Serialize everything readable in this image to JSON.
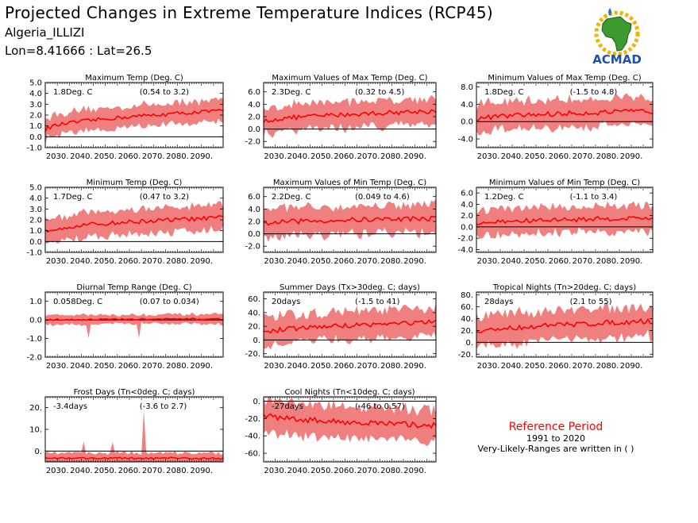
{
  "header": {
    "title": "Projected Changes in Extreme Temperature Indices (RCP45)",
    "region": "Algeria_ILLIZI",
    "coords": "Lon=8.41666 : Lat=26.5"
  },
  "logo": {
    "text": "ACMAD",
    "icon": "africa-map-logo"
  },
  "reference": {
    "title": "Reference Period",
    "years": "1991 to 2020",
    "note": "Very-Likely-Ranges are written in ( )"
  },
  "colors": {
    "band": "#f08080",
    "line": "#ff0000",
    "zero": "#000000",
    "ref_title": "#ff0000"
  },
  "chart_data": [
    {
      "type": "line",
      "title": "Maximum Temp (Deg. C)",
      "value_label": "1.8Deg. C",
      "range_label": "(0.54 to 3.2)",
      "xticks": [
        "2030.",
        "2040.",
        "2050.",
        "2060.",
        "2070.",
        "2080.",
        "2090."
      ],
      "xlim": [
        2025,
        2099
      ],
      "ylim": [
        -1,
        5
      ],
      "yticks": [
        "5.0",
        "4.0",
        "3.0",
        "2.0",
        "1.0",
        "0.0",
        "-1.0"
      ],
      "ytick_values": [
        5,
        4,
        3,
        2,
        1,
        0,
        -1
      ],
      "series": [
        {
          "start": 0.6,
          "end": 2.4,
          "band": 1.0
        }
      ]
    },
    {
      "type": "line",
      "title": "Maximum Values of Max Temp (Deg. C)",
      "value_label": "2.3Deg. C",
      "range_label": "(0.32 to 4.5)",
      "xticks": [
        "2030.",
        "2040.",
        "2050.",
        "2060.",
        "2070.",
        "2080.",
        "2090."
      ],
      "xlim": [
        2025,
        2099
      ],
      "ylim": [
        -3,
        7.5
      ],
      "yticks": [
        "6.0",
        "4.0",
        "2.0",
        "0.0",
        "-2.0"
      ],
      "ytick_values": [
        6,
        4,
        2,
        0,
        -2
      ],
      "series": [
        {
          "start": 1.1,
          "end": 2.9,
          "band": 2.1
        }
      ]
    },
    {
      "type": "line",
      "title": "Minimum Values of Max Temp (Deg. C)",
      "value_label": "1.8Deg. C",
      "range_label": "(-1.5 to 4.8)",
      "xticks": [
        "2030.",
        "2040.",
        "2050.",
        "2060.",
        "2070.",
        "2080.",
        "2090."
      ],
      "xlim": [
        2025,
        2099
      ],
      "ylim": [
        -6,
        9
      ],
      "yticks": [
        "8.0",
        "4.0",
        "0.0",
        "-4.0"
      ],
      "ytick_values": [
        8,
        4,
        0,
        -4
      ],
      "series": [
        {
          "start": 0.5,
          "end": 2.4,
          "band": 3.2
        }
      ]
    },
    {
      "type": "line",
      "title": "Minimum Temp (Deg. C)",
      "value_label": "1.7Deg. C",
      "range_label": "(0.47 to 3.2)",
      "xticks": [
        "2030.",
        "2040.",
        "2050.",
        "2060.",
        "2070.",
        "2080.",
        "2090."
      ],
      "xlim": [
        2025,
        2099
      ],
      "ylim": [
        -1,
        5
      ],
      "yticks": [
        "5.0",
        "4.0",
        "3.0",
        "2.0",
        "1.0",
        "0.0",
        "-1.0"
      ],
      "ytick_values": [
        5,
        4,
        3,
        2,
        1,
        0,
        -1
      ],
      "series": [
        {
          "start": 0.9,
          "end": 2.2,
          "band": 1.1
        }
      ]
    },
    {
      "type": "line",
      "title": "Maximum Values of Min Temp (Deg. C)",
      "value_label": "2.2Deg. C",
      "range_label": "(0.049 to 4.6)",
      "xticks": [
        "2030.",
        "2040.",
        "2050.",
        "2060.",
        "2070.",
        "2080.",
        "2090."
      ],
      "xlim": [
        2025,
        2099
      ],
      "ylim": [
        -3,
        7.5
      ],
      "yticks": [
        "6.0",
        "4.0",
        "2.0",
        "0.0",
        "-2.0"
      ],
      "ytick_values": [
        6,
        4,
        2,
        0,
        -2
      ],
      "series": [
        {
          "start": 1.6,
          "end": 2.5,
          "band": 2.3
        }
      ]
    },
    {
      "type": "line",
      "title": "Minimum Values of Min Temp (Deg. C)",
      "value_label": "1.2Deg. C",
      "range_label": "(-1.1 to 3.4)",
      "xticks": [
        "2030.",
        "2040.",
        "2050.",
        "2060.",
        "2070.",
        "2080.",
        "2090."
      ],
      "xlim": [
        2025,
        2099
      ],
      "ylim": [
        -4.5,
        7
      ],
      "yticks": [
        "6.0",
        "4.0",
        "2.0",
        "0.0",
        "-2.0",
        "-4.0"
      ],
      "ytick_values": [
        6,
        4,
        2,
        0,
        -2,
        -4
      ],
      "series": [
        {
          "start": 0.5,
          "end": 1.6,
          "band": 2.3
        }
      ]
    },
    {
      "type": "line",
      "title": "Diurnal Temp Range (Deg. C)",
      "value_label": "0.058Deg. C",
      "range_label": "(0.07 to 0.034)",
      "xticks": [
        "2030.",
        "2040.",
        "2050.",
        "2060.",
        "2070.",
        "2080.",
        "2090."
      ],
      "xlim": [
        2025,
        2099
      ],
      "ylim": [
        -2,
        1.5
      ],
      "yticks": [
        "1.0",
        "0.0",
        "-1.0",
        "-2.0"
      ],
      "ytick_values": [
        1,
        0,
        -1,
        -2
      ],
      "series": [
        {
          "start": 0.0,
          "end": 0.05,
          "band": 0.25
        }
      ]
    },
    {
      "type": "line",
      "title": "Summer Days (Tx>30deg. C; days)",
      "value_label": "20days",
      "range_label": "(-1.5 to 41)",
      "xticks": [
        "2030.",
        "2040.",
        "2050.",
        "2060.",
        "2070.",
        "2080.",
        "2090."
      ],
      "xlim": [
        2025,
        2099
      ],
      "ylim": [
        -25,
        70
      ],
      "yticks": [
        "60.",
        "40.",
        "20.",
        "0.",
        "-20."
      ],
      "ytick_values": [
        60,
        40,
        20,
        0,
        -20
      ],
      "series": [
        {
          "start": 10,
          "end": 26,
          "band": 20
        }
      ]
    },
    {
      "type": "line",
      "title": "Tropical Nights (Tn>20deg. C; days)",
      "value_label": "28days",
      "range_label": "(2.1 to 55)",
      "xticks": [
        "2030.",
        "2040.",
        "2050.",
        "2060.",
        "2070.",
        "2080.",
        "2090."
      ],
      "xlim": [
        2025,
        2099
      ],
      "ylim": [
        -25,
        85
      ],
      "yticks": [
        "80.",
        "60.",
        "40.",
        "20.",
        "0.",
        "-20."
      ],
      "ytick_values": [
        80,
        60,
        40,
        20,
        0,
        -20
      ],
      "series": [
        {
          "start": 15,
          "end": 36,
          "band": 25
        }
      ]
    },
    {
      "type": "line",
      "title": "Frost Days (Tn<0deg. C; days)",
      "value_label": "-3.4days",
      "range_label": "(-3.6 to 2.7)",
      "xticks": [
        "2030.",
        "2040.",
        "2050.",
        "2060.",
        "2070.",
        "2080.",
        "2090."
      ],
      "xlim": [
        2025,
        2099
      ],
      "ylim": [
        -5,
        25
      ],
      "yticks": [
        "20.",
        "10.",
        "0."
      ],
      "ytick_values": [
        20,
        10,
        0
      ],
      "series": [
        {
          "start": -3.2,
          "end": -3.4,
          "band": 2.5
        }
      ]
    },
    {
      "type": "line",
      "title": "Cool Nights (Tn<10deg. C; days)",
      "value_label": "-27days",
      "range_label": "(-46 to 0.57)",
      "xticks": [
        "2030.",
        "2040.",
        "2050.",
        "2060.",
        "2070.",
        "2080.",
        "2090."
      ],
      "xlim": [
        2025,
        2099
      ],
      "ylim": [
        -70,
        5
      ],
      "yticks": [
        "0.",
        "-20.",
        "-40.",
        "-60."
      ],
      "ytick_values": [
        0,
        -20,
        -40,
        -60
      ],
      "series": [
        {
          "start": -15,
          "end": -28,
          "band": 18
        }
      ]
    }
  ]
}
